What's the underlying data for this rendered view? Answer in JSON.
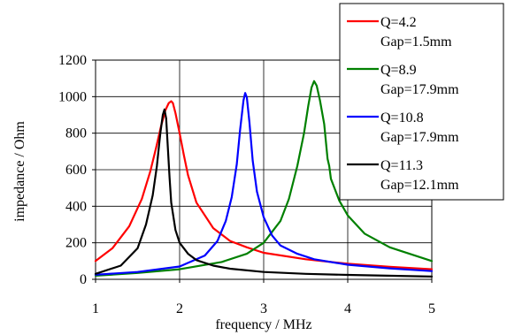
{
  "chart_data": {
    "type": "line",
    "xlabel": "frequency / MHz",
    "ylabel": "impedance / Ohm",
    "xlim": [
      1,
      5
    ],
    "ylim": [
      0,
      1200
    ],
    "x_ticks": [
      "1",
      "2",
      "3",
      "4",
      "5"
    ],
    "y_ticks": [
      "0",
      "200",
      "400",
      "600",
      "800",
      "1000",
      "1200"
    ],
    "grid": true,
    "legend_position": "top-right",
    "series": [
      {
        "label_lines": [
          "Q=4.2",
          "Gap=1.5mm"
        ],
        "color": "#ff0000",
        "x": [
          1.0,
          1.2,
          1.4,
          1.55,
          1.65,
          1.72,
          1.78,
          1.83,
          1.87,
          1.9,
          1.92,
          1.95,
          2.0,
          2.05,
          2.1,
          2.2,
          2.4,
          2.6,
          2.8,
          3.0,
          3.5,
          4.0,
          4.5,
          5.0
        ],
        "y": [
          100,
          170,
          290,
          440,
          590,
          720,
          840,
          925,
          965,
          975,
          965,
          910,
          800,
          680,
          570,
          420,
          280,
          210,
          175,
          145,
          110,
          85,
          68,
          55
        ]
      },
      {
        "label_lines": [
          "Q=8.9",
          "Gap=17.9mm"
        ],
        "color": "#008000",
        "x": [
          1.0,
          1.5,
          2.0,
          2.5,
          2.8,
          3.0,
          3.2,
          3.3,
          3.4,
          3.48,
          3.53,
          3.57,
          3.6,
          3.63,
          3.67,
          3.72,
          3.76,
          3.78,
          3.8,
          3.9,
          4.0,
          4.2,
          4.5,
          5.0
        ],
        "y": [
          20,
          35,
          55,
          95,
          140,
          200,
          320,
          440,
          620,
          800,
          950,
          1050,
          1085,
          1060,
          980,
          850,
          660,
          620,
          550,
          430,
          350,
          250,
          175,
          100
        ]
      },
      {
        "label_lines": [
          "Q=10.8",
          "Gap=17.9mm"
        ],
        "color": "#0000ff",
        "x": [
          1.0,
          1.5,
          2.0,
          2.3,
          2.45,
          2.55,
          2.62,
          2.68,
          2.72,
          2.76,
          2.78,
          2.8,
          2.83,
          2.87,
          2.92,
          3.0,
          3.1,
          3.2,
          3.4,
          3.6,
          4.0,
          4.5,
          5.0
        ],
        "y": [
          25,
          40,
          70,
          130,
          210,
          320,
          450,
          630,
          820,
          980,
          1020,
          995,
          860,
          650,
          480,
          340,
          240,
          185,
          140,
          110,
          80,
          60,
          45
        ]
      },
      {
        "label_lines": [
          "Q=11.3",
          "Gap=12.1mm"
        ],
        "color": "#000000",
        "x": [
          1.0,
          1.3,
          1.5,
          1.6,
          1.68,
          1.73,
          1.77,
          1.8,
          1.82,
          1.84,
          1.86,
          1.88,
          1.9,
          1.95,
          2.0,
          2.1,
          2.2,
          2.4,
          2.6,
          3.0,
          3.5,
          4.0,
          5.0
        ],
        "y": [
          30,
          75,
          170,
          300,
          460,
          620,
          800,
          900,
          930,
          880,
          720,
          560,
          420,
          270,
          200,
          140,
          105,
          75,
          58,
          40,
          30,
          24,
          15
        ]
      }
    ]
  }
}
